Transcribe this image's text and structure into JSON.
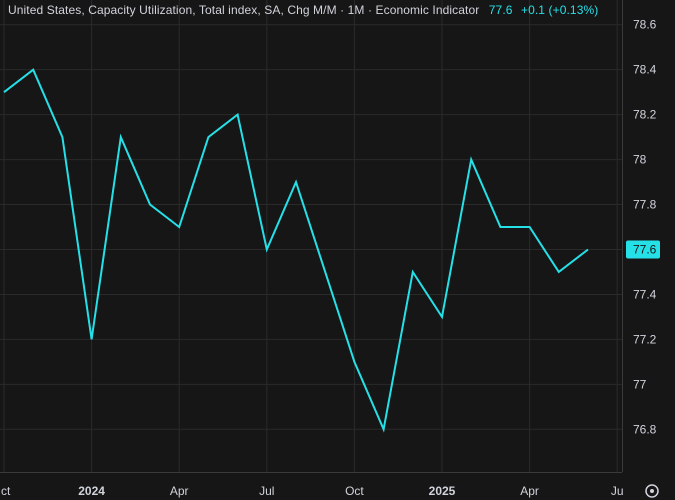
{
  "legend": {
    "title": "United States, Capacity Utilization, Total index, SA, Chg M/M · 1M · Economic Indicator",
    "last_value": "77.6",
    "change": "+0.1 (+0.13%)"
  },
  "colors": {
    "background": "#161616",
    "line": "#26e0e8",
    "grid": "#2a2a2a",
    "axis_text": "#d1d4dc",
    "badge_bg": "#26e0e8"
  },
  "chart_data": {
    "type": "line",
    "x": [
      "2023-10",
      "2023-11",
      "2023-12",
      "2024-01",
      "2024-02",
      "2024-03",
      "2024-04",
      "2024-05",
      "2024-06",
      "2024-07",
      "2024-08",
      "2024-09",
      "2024-10",
      "2024-11",
      "2024-12",
      "2025-01",
      "2025-02",
      "2025-03",
      "2025-04",
      "2025-05",
      "2025-06"
    ],
    "series": [
      {
        "values": [
          78.3,
          78.4,
          78.1,
          77.2,
          78.1,
          77.8,
          77.7,
          78.1,
          78.2,
          77.6,
          77.9,
          77.5,
          77.1,
          76.8,
          77.5,
          77.3,
          78.0,
          77.7,
          77.7,
          77.5,
          77.6
        ]
      }
    ],
    "ylim": [
      76.61,
      78.71
    ],
    "y_ticks": [
      76.8,
      77,
      77.2,
      77.4,
      77.6,
      77.8,
      78,
      78.2,
      78.4,
      78.6
    ],
    "y_tick_labels": [
      "76.8",
      "77",
      "77.2",
      "77.4",
      "77.6",
      "77.8",
      "78",
      "78.2",
      "78.4",
      "78.6"
    ],
    "x_ticks": [
      {
        "at": "2023-10",
        "label": "ct",
        "bold": false
      },
      {
        "at": "2024-01",
        "label": "2024",
        "bold": true
      },
      {
        "at": "2024-04",
        "label": "Apr",
        "bold": false
      },
      {
        "at": "2024-07",
        "label": "Jul",
        "bold": false
      },
      {
        "at": "2024-10",
        "label": "Oct",
        "bold": false
      },
      {
        "at": "2025-01",
        "label": "2025",
        "bold": true
      },
      {
        "at": "2025-04",
        "label": "Apr",
        "bold": false
      },
      {
        "at": "2025-07",
        "label": "Ju",
        "bold": false
      }
    ],
    "last_value_label": "77.6",
    "grid": true,
    "y_axis_position": "right"
  }
}
